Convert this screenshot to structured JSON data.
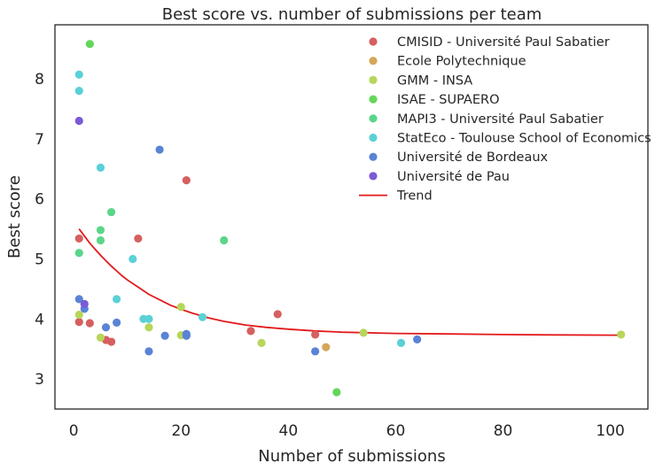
{
  "chart_data": {
    "type": "scatter",
    "title": "Best score vs. number of submissions per team",
    "xlabel": "Number of submissions",
    "ylabel": "Best score",
    "xlim": [
      -3.5,
      107
    ],
    "ylim": [
      2.5,
      8.9
    ],
    "xticks": [
      "0",
      "20",
      "40",
      "60",
      "80",
      "100"
    ],
    "yticks": [
      "3",
      "4",
      "5",
      "6",
      "7",
      "8"
    ],
    "grid": false,
    "legend_position": "top-right",
    "series": [
      {
        "name": "CMISID - Université Paul Sabatier",
        "color": "#d65f5f",
        "points": [
          [
            1,
            5.34
          ],
          [
            1,
            3.95
          ],
          [
            3,
            3.93
          ],
          [
            6,
            3.65
          ],
          [
            7,
            3.62
          ],
          [
            12,
            5.34
          ],
          [
            21,
            6.31
          ],
          [
            33,
            3.8
          ],
          [
            38,
            4.08
          ],
          [
            45,
            3.74
          ]
        ]
      },
      {
        "name": "Ecole Polytechnique",
        "color": "#d5a65a",
        "points": [
          [
            47,
            3.53
          ]
        ]
      },
      {
        "name": "GMM - INSA",
        "color": "#b7d65a",
        "points": [
          [
            1,
            4.07
          ],
          [
            5,
            3.69
          ],
          [
            14,
            3.86
          ],
          [
            20,
            4.2
          ],
          [
            20,
            3.73
          ],
          [
            35,
            3.6
          ],
          [
            54,
            3.77
          ],
          [
            102,
            3.74
          ]
        ]
      },
      {
        "name": "ISAE - SUPAERO",
        "color": "#64d65a",
        "points": [
          [
            3,
            8.58
          ],
          [
            49,
            2.78
          ]
        ]
      },
      {
        "name": "MAPI3 - Université Paul Sabatier",
        "color": "#5ad68a",
        "points": [
          [
            1,
            5.1
          ],
          [
            5,
            5.48
          ],
          [
            5,
            5.31
          ],
          [
            7,
            5.78
          ],
          [
            28,
            5.31
          ]
        ]
      },
      {
        "name": "StatEco - Toulouse School of Economics",
        "color": "#5ad1d6",
        "points": [
          [
            1,
            8.07
          ],
          [
            1,
            7.8
          ],
          [
            5,
            6.52
          ],
          [
            8,
            4.33
          ],
          [
            11,
            5.0
          ],
          [
            13,
            4.0
          ],
          [
            14,
            4.0
          ],
          [
            24,
            4.03
          ],
          [
            61,
            3.6
          ]
        ]
      },
      {
        "name": "Université de Bordeaux",
        "color": "#5a83d6",
        "points": [
          [
            1,
            4.33
          ],
          [
            2,
            4.17
          ],
          [
            6,
            3.86
          ],
          [
            8,
            3.94
          ],
          [
            14,
            3.46
          ],
          [
            16,
            6.82
          ],
          [
            17,
            3.72
          ],
          [
            21,
            3.75
          ],
          [
            21,
            3.72
          ],
          [
            45,
            3.46
          ],
          [
            64,
            3.66
          ]
        ]
      },
      {
        "name": "Université de Pau",
        "color": "#7a5ad6",
        "points": [
          [
            1,
            7.3
          ],
          [
            2,
            4.25
          ]
        ]
      }
    ],
    "trend": {
      "name": "Trend",
      "color": "#e31a1c",
      "points": [
        [
          1,
          5.5
        ],
        [
          2,
          5.38
        ],
        [
          3,
          5.26
        ],
        [
          4,
          5.16
        ],
        [
          5,
          5.06
        ],
        [
          6,
          4.97
        ],
        [
          7,
          4.88
        ],
        [
          8,
          4.8
        ],
        [
          9,
          4.72
        ],
        [
          10,
          4.65
        ],
        [
          12,
          4.53
        ],
        [
          14,
          4.41
        ],
        [
          16,
          4.32
        ],
        [
          18,
          4.23
        ],
        [
          20,
          4.16
        ],
        [
          22,
          4.1
        ],
        [
          25,
          4.02
        ],
        [
          28,
          3.96
        ],
        [
          32,
          3.9
        ],
        [
          36,
          3.86
        ],
        [
          40,
          3.83
        ],
        [
          45,
          3.8
        ],
        [
          50,
          3.78
        ],
        [
          60,
          3.76
        ],
        [
          70,
          3.75
        ],
        [
          80,
          3.74
        ],
        [
          90,
          3.735
        ],
        [
          102,
          3.73
        ]
      ]
    }
  }
}
